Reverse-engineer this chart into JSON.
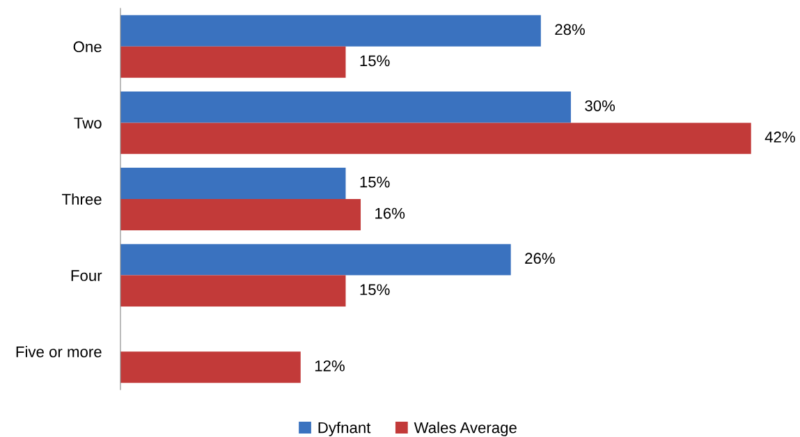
{
  "chart_data": {
    "type": "bar",
    "orientation": "horizontal",
    "categories": [
      "One",
      "Two",
      "Three",
      "Four",
      "Five or more"
    ],
    "series": [
      {
        "name": "Dyfnant",
        "color": "#3a72bf",
        "values": [
          28,
          30,
          15,
          26,
          null
        ],
        "value_labels": [
          "28%",
          "30%",
          "15%",
          "26%",
          null
        ]
      },
      {
        "name": "Wales Average",
        "color": "#c23a39",
        "values": [
          15,
          42,
          16,
          15,
          12
        ],
        "value_labels": [
          "15%",
          "42%",
          "16%",
          "15%",
          "12%"
        ]
      }
    ],
    "tick_labels": "y",
    "legend": "bottom"
  }
}
